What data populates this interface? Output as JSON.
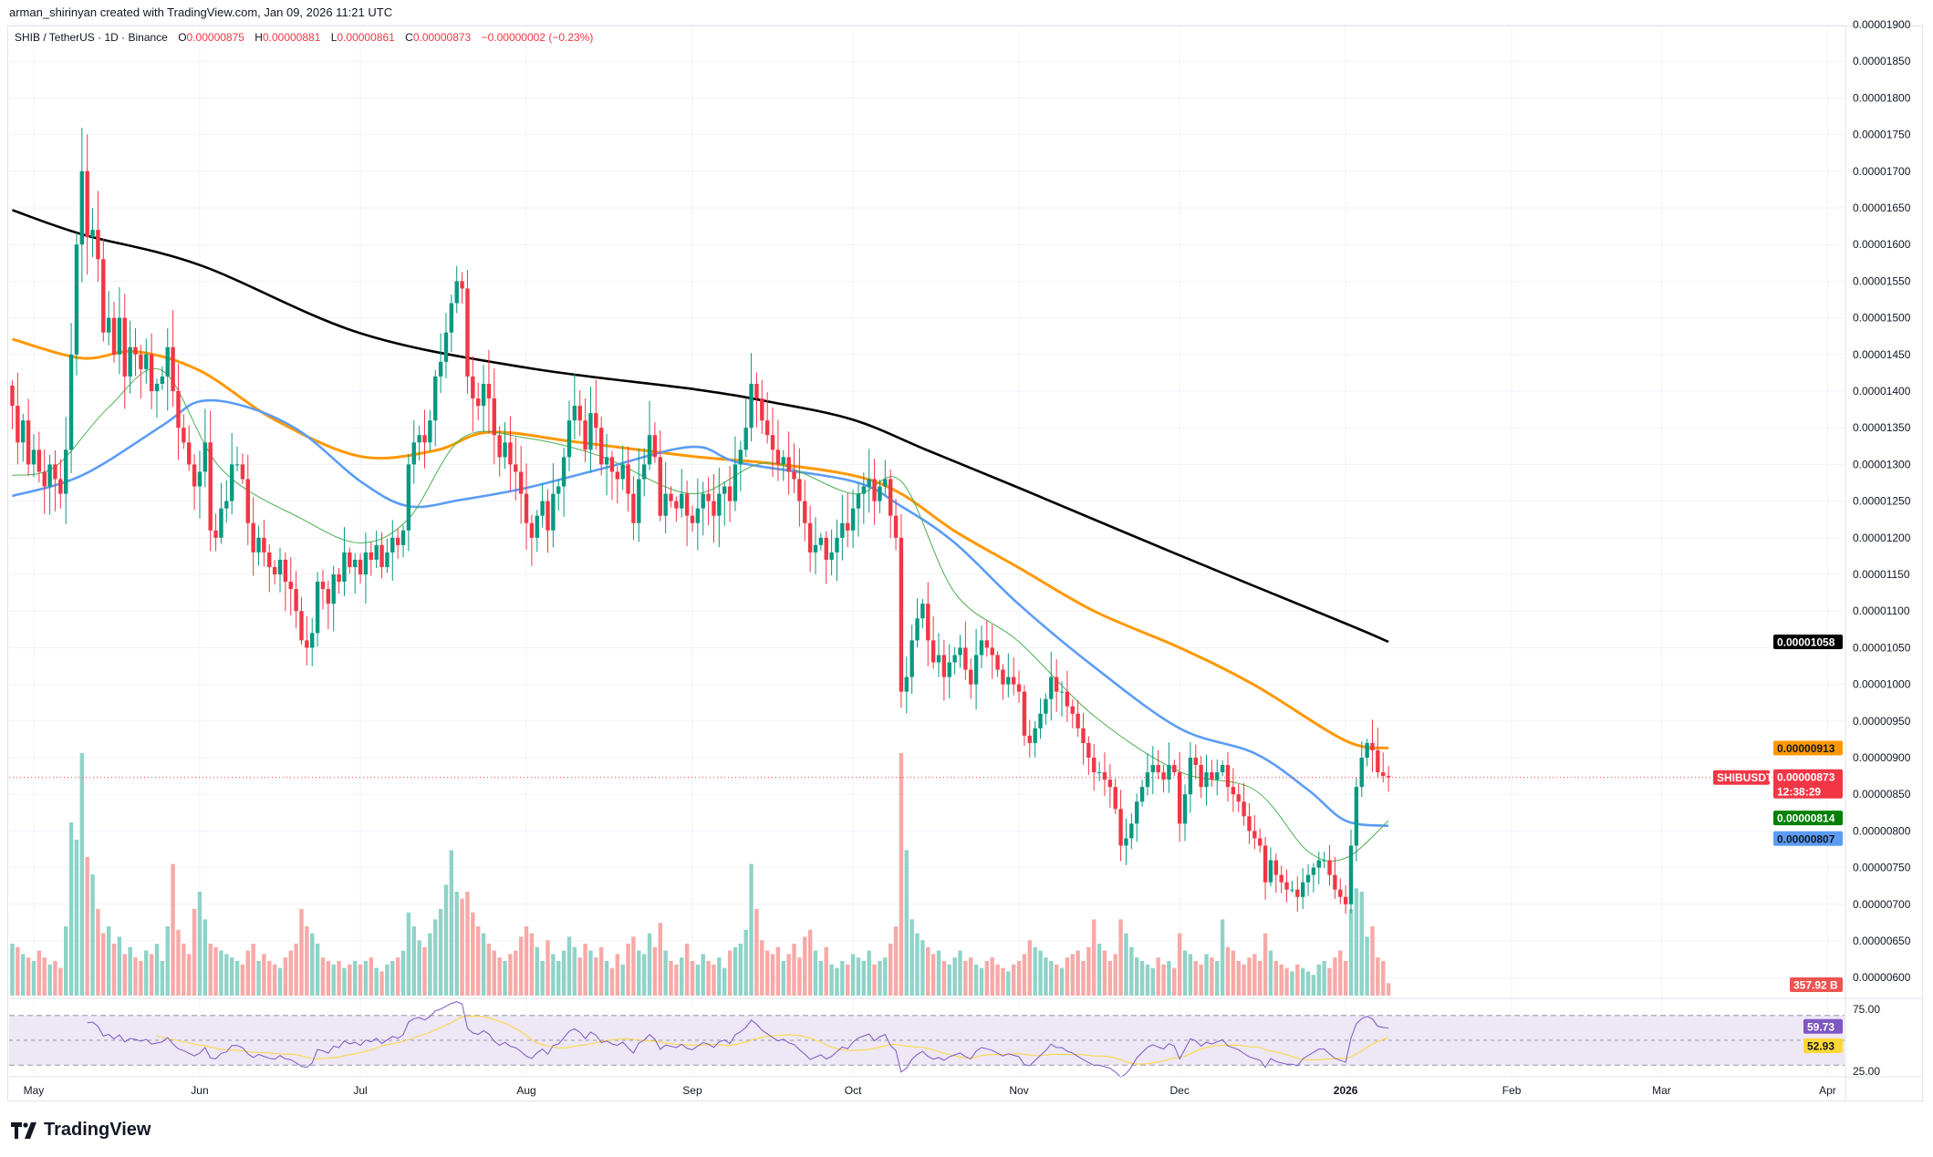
{
  "header": {
    "author_line": "arman_shirinyan created with TradingView.com, Jan 09, 2026 11:21 UTC",
    "symbol": "SHIB / TetherUS · 1D · Binance",
    "open_label": "O",
    "open": "0.00000875",
    "high_label": "H",
    "high": "0.00000881",
    "low_label": "L",
    "low": "0.00000861",
    "close_label": "C",
    "close": "0.00000873",
    "change": "−0.00000002 (−0.23%)"
  },
  "colors": {
    "up": "#089981",
    "down": "#f23645",
    "vol_up": "#8fd3c8",
    "vol_down": "#f7a9a7",
    "ma_black": "#000000",
    "ma_orange": "#ff9800",
    "ma_blue": "#5b9cf6",
    "ma_green": "#4caf50",
    "rsi": "#7e57c2",
    "rsi_ma": "#fdd835",
    "rsi_band": "#ede7f6"
  },
  "price_axis": [
    "0.00001900",
    "0.00001850",
    "0.00001800",
    "0.00001750",
    "0.00001700",
    "0.00001650",
    "0.00001600",
    "0.00001550",
    "0.00001500",
    "0.00001450",
    "0.00001400",
    "0.00001350",
    "0.00001300",
    "0.00001250",
    "0.00001200",
    "0.00001150",
    "0.00001100",
    "0.00001050",
    "0.00001000",
    "0.00000950",
    "0.00000900",
    "0.00000850",
    "0.00000800",
    "0.00000750",
    "0.00000700",
    "0.00000650",
    "0.00000600"
  ],
  "rsi_axis": [
    "75.00",
    "25.00"
  ],
  "time_axis": [
    {
      "label": "May",
      "date": "2025-05-01"
    },
    {
      "label": "Jun",
      "date": "2025-06-01"
    },
    {
      "label": "Jul",
      "date": "2025-07-01"
    },
    {
      "label": "Aug",
      "date": "2025-08-01"
    },
    {
      "label": "Sep",
      "date": "2025-09-01"
    },
    {
      "label": "Oct",
      "date": "2025-10-01"
    },
    {
      "label": "Nov",
      "date": "2025-11-01"
    },
    {
      "label": "Dec",
      "date": "2025-12-01"
    },
    {
      "label": "2026",
      "date": "2026-01-01"
    },
    {
      "label": "Feb",
      "date": "2026-02-01"
    },
    {
      "label": "Mar",
      "date": "2026-03-01"
    },
    {
      "label": "Apr",
      "date": "2026-04-01"
    }
  ],
  "tags": {
    "ma_black": "0.00001058",
    "ma_orange": "0.00000913",
    "symbol": "SHIBUSDT",
    "last_price": "0.00000873",
    "countdown": "12:38:29",
    "ma_green": "0.00000814",
    "ma_blue": "0.00000807",
    "volume": "357.92 B",
    "rsi": "59.73",
    "rsi_ma": "52.93"
  },
  "chart_data": {
    "type": "candlestick",
    "interval": "1D",
    "closes": [
      1.38e-05,
      1.33e-05,
      1.36e-05,
      1.3e-05,
      1.32e-05,
      1.29e-05,
      1.27e-05,
      1.3e-05,
      1.28e-05,
      1.26e-05,
      1.32e-05,
      1.45e-05,
      1.6e-05,
      1.7e-05,
      1.61e-05,
      1.62e-05,
      1.58e-05,
      1.48e-05,
      1.5e-05,
      1.45e-05,
      1.5e-05,
      1.42e-05,
      1.46e-05,
      1.45e-05,
      1.43e-05,
      1.45e-05,
      1.4e-05,
      1.41e-05,
      1.42e-05,
      1.46e-05,
      1.4e-05,
      1.35e-05,
      1.33e-05,
      1.3e-05,
      1.27e-05,
      1.29e-05,
      1.33e-05,
      1.21e-05,
      1.2e-05,
      1.24e-05,
      1.25e-05,
      1.3e-05,
      1.3e-05,
      1.28e-05,
      1.22e-05,
      1.18e-05,
      1.2e-05,
      1.18e-05,
      1.16e-05,
      1.15e-05,
      1.17e-05,
      1.14e-05,
      1.13e-05,
      1.1e-05,
      1.06e-05,
      1.05e-05,
      1.07e-05,
      1.14e-05,
      1.13e-05,
      1.11e-05,
      1.15e-05,
      1.14e-05,
      1.18e-05,
      1.16e-05,
      1.17e-05,
      1.15e-05,
      1.18e-05,
      1.17e-05,
      1.19e-05,
      1.16e-05,
      1.18e-05,
      1.2e-05,
      1.19e-05,
      1.21e-05,
      1.3e-05,
      1.33e-05,
      1.34e-05,
      1.33e-05,
      1.36e-05,
      1.42e-05,
      1.44e-05,
      1.48e-05,
      1.52e-05,
      1.55e-05,
      1.54e-05,
      1.42e-05,
      1.39e-05,
      1.38e-05,
      1.41e-05,
      1.39e-05,
      1.34e-05,
      1.31e-05,
      1.33e-05,
      1.3e-05,
      1.29e-05,
      1.26e-05,
      1.22e-05,
      1.2e-05,
      1.23e-05,
      1.25e-05,
      1.21e-05,
      1.26e-05,
      1.27e-05,
      1.31e-05,
      1.36e-05,
      1.38e-05,
      1.36e-05,
      1.32e-05,
      1.37e-05,
      1.35e-05,
      1.3e-05,
      1.31e-05,
      1.29e-05,
      1.28e-05,
      1.3e-05,
      1.26e-05,
      1.22e-05,
      1.28e-05,
      1.3e-05,
      1.34e-05,
      1.31e-05,
      1.23e-05,
      1.26e-05,
      1.25e-05,
      1.24e-05,
      1.26e-05,
      1.23e-05,
      1.22e-05,
      1.24e-05,
      1.26e-05,
      1.25e-05,
      1.23e-05,
      1.26e-05,
      1.27e-05,
      1.25e-05,
      1.3e-05,
      1.32e-05,
      1.35e-05,
      1.41e-05,
      1.39e-05,
      1.36e-05,
      1.34e-05,
      1.32e-05,
      1.3e-05,
      1.31e-05,
      1.29e-05,
      1.28e-05,
      1.25e-05,
      1.22e-05,
      1.18e-05,
      1.19e-05,
      1.2e-05,
      1.17e-05,
      1.18e-05,
      1.2e-05,
      1.22e-05,
      1.21e-05,
      1.24e-05,
      1.26e-05,
      1.27e-05,
      1.28e-05,
      1.25e-05,
      1.27e-05,
      1.28e-05,
      1.23e-05,
      1.2e-05,
      9.9e-06,
      1.01e-05,
      1.06e-05,
      1.09e-05,
      1.11e-05,
      1.06e-05,
      1.03e-05,
      1.04e-05,
      1.01e-05,
      1.03e-05,
      1.04e-05,
      1.05e-05,
      1.02e-05,
      1e-05,
      1.04e-05,
      1.06e-05,
      1.05e-05,
      1.04e-05,
      1.02e-05,
      1e-05,
      1.01e-05,
      1e-05,
      9.9e-06,
      9.3e-06,
      9.2e-06,
      9.4e-06,
      9.6e-06,
      9.8e-06,
      1.01e-05,
      9.9e-06,
      9.9e-06,
      9.7e-06,
      9.6e-06,
      9.4e-06,
      9.2e-06,
      9e-06,
      8.8e-06,
      8.8e-06,
      8.7e-06,
      8.6e-06,
      8.3e-06,
      7.8e-06,
      7.9e-06,
      8.1e-06,
      8.4e-06,
      8.6e-06,
      8.8e-06,
      8.9e-06,
      8.8e-06,
      8.7e-06,
      8.9e-06,
      8.8e-06,
      8.1e-06,
      8.5e-06,
      9e-06,
      8.9e-06,
      8.6e-06,
      8.8e-06,
      8.7e-06,
      8.8e-06,
      8.9e-06,
      8.6e-06,
      8.5e-06,
      8.4e-06,
      8.2e-06,
      8e-06,
      7.9e-06,
      7.8e-06,
      7.3e-06,
      7.6e-06,
      7.4e-06,
      7.3e-06,
      7.2e-06,
      7.2e-06,
      7.1e-06,
      7.3e-06,
      7.4e-06,
      7.5e-06,
      7.6e-06,
      7.6e-06,
      7.4e-06,
      7.2e-06,
      7.1e-06,
      7e-06,
      7.8e-06,
      8.6e-06,
      9e-06,
      9.2e-06,
      9.1e-06,
      8.8e-06,
      8.75e-06,
      8.73e-06
    ],
    "volumes_B": [
      1500,
      1400,
      1200,
      1100,
      1000,
      1300,
      1100,
      900,
      1000,
      800,
      2000,
      5000,
      4500,
      7000,
      4000,
      3500,
      2500,
      1800,
      2000,
      1500,
      1700,
      1200,
      1400,
      1100,
      1000,
      1300,
      1200,
      1500,
      1000,
      2000,
      3800,
      1900,
      1500,
      1200,
      2500,
      3000,
      2200,
      1500,
      1400,
      1300,
      1200,
      1100,
      1000,
      900,
      1300,
      1500,
      1000,
      1200,
      1000,
      900,
      800,
      1100,
      1300,
      1500,
      2500,
      2000,
      1800,
      1500,
      1100,
      1000,
      900,
      1000,
      800,
      900,
      1000,
      900,
      1000,
      1100,
      800,
      700,
      900,
      1000,
      1100,
      1300,
      2400,
      2000,
      1600,
      1400,
      1800,
      2200,
      2500,
      3200,
      4200,
      3000,
      2800,
      3000,
      2400,
      2000,
      1800,
      1500,
      1300,
      1100,
      1000,
      1200,
      1300,
      1700,
      2000,
      1800,
      1400,
      1000,
      1600,
      1200,
      1000,
      1300,
      1700,
      1400,
      1100,
      1500,
      1300,
      1100,
      1400,
      1000,
      800,
      1200,
      900,
      1500,
      1700,
      1300,
      1200,
      1800,
      1400,
      2100,
      1300,
      1000,
      900,
      1100,
      1500,
      1000,
      900,
      1200,
      1000,
      900,
      1100,
      800,
      1300,
      1400,
      1500,
      1900,
      3800,
      2500,
      1600,
      1300,
      1200,
      1400,
      1000,
      1200,
      1500,
      1100,
      1700,
      1900,
      1300,
      1000,
      1400,
      900,
      800,
      1000,
      900,
      1200,
      1100,
      1000,
      1300,
      900,
      1000,
      1100,
      1500,
      2000,
      7000,
      4200,
      2200,
      1800,
      1600,
      1400,
      1200,
      1300,
      1000,
      900,
      1100,
      1300,
      1000,
      1100,
      900,
      800,
      1000,
      1100,
      900,
      800,
      700,
      900,
      1000,
      1200,
      1600,
      1400,
      1300,
      1100,
      1000,
      900,
      800,
      1100,
      1200,
      1300,
      1000,
      1400,
      2200,
      1500,
      1300,
      1000,
      1200,
      2200,
      1800,
      1400,
      1100,
      1000,
      900,
      800,
      1100,
      900,
      1000,
      800,
      1800,
      1300,
      1200,
      1000,
      900,
      1200,
      1100,
      1000,
      2200,
      1400,
      1300,
      1000,
      900,
      1100,
      1200,
      1000,
      1800,
      1300,
      1000,
      900,
      800,
      700,
      900,
      800,
      700,
      600,
      900,
      1000,
      800,
      1100,
      1300,
      1000,
      2500,
      3100,
      3000,
      1700,
      2000,
      1100,
      1000,
      357.92
    ],
    "moving_averages": [
      {
        "color": "ma_black",
        "points": [
          [
            "2025-04-27",
            1.647e-05
          ],
          [
            "2025-05-10",
            1.614e-05
          ],
          [
            "2025-06-01",
            1.572e-05
          ],
          [
            "2025-07-01",
            1.479e-05
          ],
          [
            "2025-08-01",
            1.432e-05
          ],
          [
            "2025-09-01",
            1.403e-05
          ],
          [
            "2025-09-15",
            1.386e-05
          ],
          [
            "2025-10-01",
            1.361e-05
          ],
          [
            "2025-10-15",
            1.319e-05
          ],
          [
            "2025-11-01",
            1.268e-05
          ],
          [
            "2025-12-01",
            1.176e-05
          ],
          [
            "2026-01-01",
            1.083e-05
          ],
          [
            "2026-01-09",
            1.058e-05
          ]
        ]
      },
      {
        "color": "ma_orange",
        "points": [
          [
            "2025-04-27",
            1.471e-05
          ],
          [
            "2025-05-10",
            1.445e-05
          ],
          [
            "2025-05-20",
            1.454e-05
          ],
          [
            "2025-06-01",
            1.428e-05
          ],
          [
            "2025-06-15",
            1.361e-05
          ],
          [
            "2025-07-01",
            1.311e-05
          ],
          [
            "2025-07-15",
            1.319e-05
          ],
          [
            "2025-07-25",
            1.344e-05
          ],
          [
            "2025-08-10",
            1.331e-05
          ],
          [
            "2025-09-01",
            1.311e-05
          ],
          [
            "2025-09-15",
            1.302e-05
          ],
          [
            "2025-10-01",
            1.285e-05
          ],
          [
            "2025-10-10",
            1.26e-05
          ],
          [
            "2025-10-20",
            1.209e-05
          ],
          [
            "2025-11-01",
            1.159e-05
          ],
          [
            "2025-11-15",
            1.1e-05
          ],
          [
            "2025-12-01",
            1.05e-05
          ],
          [
            "2025-12-15",
            9.99e-06
          ],
          [
            "2026-01-01",
            9.23e-06
          ],
          [
            "2026-01-09",
            9.13e-06
          ]
        ]
      },
      {
        "color": "ma_blue",
        "points": [
          [
            "2025-04-27",
            1.257e-05
          ],
          [
            "2025-05-10",
            1.285e-05
          ],
          [
            "2025-05-25",
            1.353e-05
          ],
          [
            "2025-06-01",
            1.386e-05
          ],
          [
            "2025-06-10",
            1.378e-05
          ],
          [
            "2025-06-20",
            1.344e-05
          ],
          [
            "2025-07-01",
            1.277e-05
          ],
          [
            "2025-07-10",
            1.243e-05
          ],
          [
            "2025-07-20",
            1.252e-05
          ],
          [
            "2025-08-01",
            1.268e-05
          ],
          [
            "2025-08-15",
            1.294e-05
          ],
          [
            "2025-09-01",
            1.324e-05
          ],
          [
            "2025-09-10",
            1.302e-05
          ],
          [
            "2025-10-01",
            1.277e-05
          ],
          [
            "2025-10-10",
            1.243e-05
          ],
          [
            "2025-10-20",
            1.193e-05
          ],
          [
            "2025-11-01",
            1.109e-05
          ],
          [
            "2025-11-15",
            1.024e-05
          ],
          [
            "2025-12-01",
            9.4e-06
          ],
          [
            "2025-12-15",
            9.06e-06
          ],
          [
            "2025-12-25",
            8.56e-06
          ],
          [
            "2026-01-01",
            8.14e-06
          ],
          [
            "2026-01-09",
            8.07e-06
          ]
        ]
      },
      {
        "color": "ma_green",
        "points": [
          [
            "2025-04-27",
            1.285e-05
          ],
          [
            "2025-05-05",
            1.297e-05
          ],
          [
            "2025-05-15",
            1.378e-05
          ],
          [
            "2025-05-25",
            1.428e-05
          ],
          [
            "2025-06-05",
            1.294e-05
          ],
          [
            "2025-06-20",
            1.226e-05
          ],
          [
            "2025-07-01",
            1.193e-05
          ],
          [
            "2025-07-10",
            1.226e-05
          ],
          [
            "2025-07-20",
            1.336e-05
          ],
          [
            "2025-08-01",
            1.336e-05
          ],
          [
            "2025-08-15",
            1.311e-05
          ],
          [
            "2025-09-01",
            1.26e-05
          ],
          [
            "2025-09-15",
            1.302e-05
          ],
          [
            "2025-10-01",
            1.26e-05
          ],
          [
            "2025-10-10",
            1.277e-05
          ],
          [
            "2025-10-20",
            1.125e-05
          ],
          [
            "2025-11-01",
            1.058e-05
          ],
          [
            "2025-11-15",
            9.57e-06
          ],
          [
            "2025-12-01",
            8.81e-06
          ],
          [
            "2025-12-15",
            8.56e-06
          ],
          [
            "2025-12-25",
            7.72e-06
          ],
          [
            "2026-01-01",
            7.63e-06
          ],
          [
            "2026-01-09",
            8.14e-06
          ]
        ]
      }
    ],
    "rsi": {
      "period": 14,
      "upper": 70,
      "lower": 30,
      "last": 59.73,
      "ma_last": 52.93
    },
    "y_range": [
      6e-06,
      1.9e-05
    ],
    "grid": true
  },
  "branding": {
    "logo": "TradingView"
  }
}
